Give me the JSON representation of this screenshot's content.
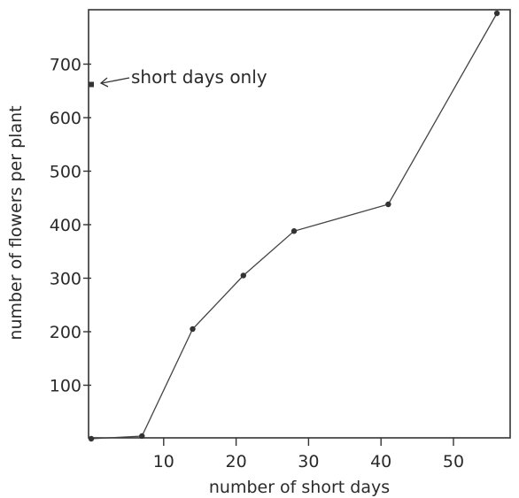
{
  "chart_data": {
    "type": "line",
    "xlabel": "number of short days",
    "ylabel": "number of flowers per plant",
    "xlim": [
      0,
      57
    ],
    "ylim": [
      0,
      800
    ],
    "x_ticks": [
      10,
      20,
      30,
      40,
      50
    ],
    "y_ticks": [
      100,
      200,
      300,
      400,
      500,
      600,
      700
    ],
    "x_tick_labels": [
      "10",
      "20",
      "30",
      "40",
      "50"
    ],
    "y_tick_labels": [
      "100",
      "200",
      "300",
      "400",
      "500",
      "600",
      "700"
    ],
    "grid": false,
    "series": [
      {
        "x": [
          0,
          7,
          14,
          21,
          28,
          41,
          56
        ],
        "y": [
          0,
          5,
          205,
          305,
          388,
          438,
          795
        ]
      }
    ],
    "reference_point": {
      "x": 0,
      "y": 662,
      "label": "short days only"
    }
  }
}
